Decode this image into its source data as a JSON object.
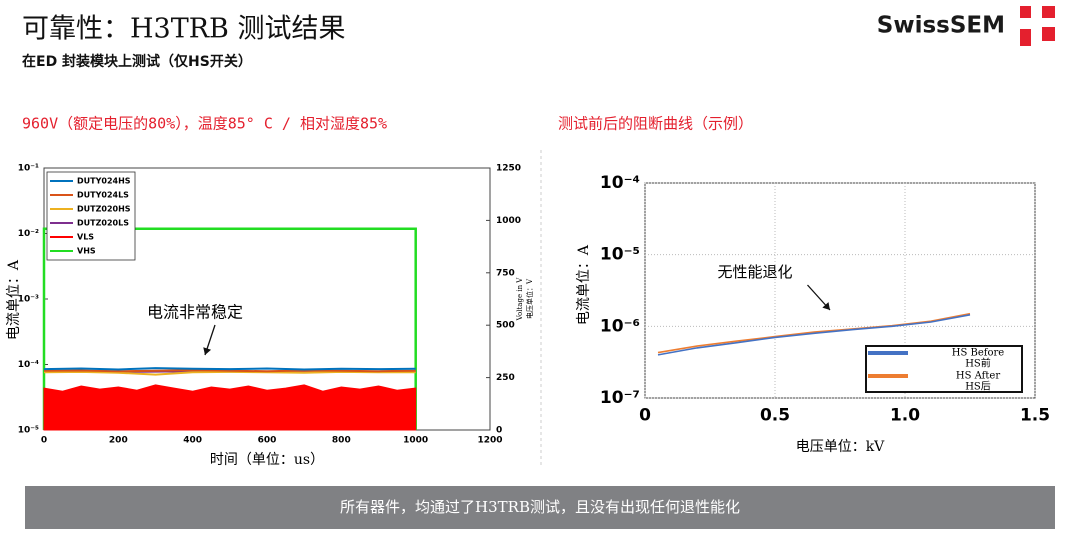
{
  "header": {
    "title": "可靠性：H3TRB 测试结果",
    "subtitle": "在ED 封装模块上测试（仅HS开关）",
    "logo": "SwissSEM"
  },
  "chart_data": [
    {
      "type": "line",
      "title": "960V（额定电压的80%），温度85° C / 相对湿度85%",
      "xlabel": "时间（单位：us）",
      "ylabel": "电流单位：A",
      "y2label": [
        "Voltage in V",
        "电压单位：V"
      ],
      "ylog": true,
      "xlim": [
        0,
        1200
      ],
      "xticks": [
        0,
        200,
        400,
        600,
        800,
        1000,
        1200
      ],
      "ylim": [
        1e-05,
        0.1
      ],
      "yticks": [
        {
          "value": 1e-05,
          "label": "10⁻⁵"
        },
        {
          "value": 0.0001,
          "label": "10⁻⁴"
        },
        {
          "value": 0.001,
          "label": "10⁻³"
        },
        {
          "value": 0.01,
          "label": "10⁻²"
        },
        {
          "value": 0.1,
          "label": "10⁻¹"
        }
      ],
      "y2lim": [
        0,
        1250
      ],
      "y2ticks": [
        0,
        250,
        500,
        750,
        1000,
        1250
      ],
      "legend": "upper left",
      "grid": false,
      "annotation": "电流非常稳定",
      "series": [
        {
          "name": "DUTY024HS",
          "color": "#0072bd",
          "x": [
            0,
            100,
            200,
            300,
            400,
            500,
            600,
            700,
            800,
            900,
            1000
          ],
          "values": [
            8.5e-05,
            8.7e-05,
            8.4e-05,
            8.8e-05,
            8.6e-05,
            8.5e-05,
            8.7e-05,
            8.4e-05,
            8.6e-05,
            8.5e-05,
            8.6e-05
          ]
        },
        {
          "name": "DUTY024LS",
          "color": "#d95319",
          "x": [
            0,
            100,
            200,
            300,
            400,
            500,
            600,
            700,
            800,
            900,
            1000
          ],
          "values": [
            8e-05,
            8.1e-05,
            7.9e-05,
            8e-05,
            8.2e-05,
            8e-05,
            7.9e-05,
            8.1e-05,
            8e-05,
            7.9e-05,
            8e-05
          ]
        },
        {
          "name": "DUTZ020HS",
          "color": "#edb120",
          "x": [
            0,
            100,
            200,
            300,
            400,
            500,
            600,
            700,
            800,
            900,
            1000
          ],
          "values": [
            7.6e-05,
            7.7e-05,
            7.5e-05,
            7e-05,
            7.6e-05,
            7.7e-05,
            7.6e-05,
            7.5e-05,
            7.7e-05,
            7.6e-05,
            7.6e-05
          ]
        },
        {
          "name": "DUTZ020LS",
          "color": "#7e2f8e",
          "x": [
            0,
            100,
            200,
            300,
            400,
            500,
            600,
            700,
            800,
            900,
            1000
          ],
          "values": [
            7.8e-05,
            7.8e-05,
            7.7e-05,
            7.8e-05,
            7.9e-05,
            7.8e-05,
            7.8e-05,
            7.7e-05,
            7.8e-05,
            7.8e-05,
            7.8e-05
          ]
        },
        {
          "name": "VLS",
          "color": "#ff0000",
          "axis": "y2",
          "area": true,
          "x": [
            0,
            50,
            100,
            150,
            200,
            250,
            300,
            350,
            400,
            450,
            500,
            550,
            600,
            650,
            700,
            750,
            800,
            850,
            900,
            950,
            1000
          ],
          "values": [
            200,
            185,
            210,
            195,
            205,
            190,
            215,
            200,
            185,
            205,
            195,
            210,
            190,
            200,
            215,
            185,
            205,
            195,
            210,
            190,
            200
          ]
        },
        {
          "name": "VHS",
          "color": "#22dd22",
          "axis": "y2",
          "x": [
            0,
            0,
            1000,
            1000
          ],
          "values": [
            0,
            960,
            960,
            0
          ]
        }
      ]
    },
    {
      "type": "line",
      "title": "测试前后的阻断曲线（示例）",
      "xlabel": "电压单位：kV",
      "ylabel": "电流单位：A",
      "ylog": true,
      "xlim": [
        0,
        1.5
      ],
      "xticks": [
        0,
        0.5,
        {
          "value": 1,
          "label": "1.0"
        },
        1.5
      ],
      "ylim": [
        1e-07,
        0.0001
      ],
      "yticks": [
        {
          "value": 1e-07,
          "label": "10⁻⁷"
        },
        {
          "value": 1e-06,
          "label": "10⁻⁶"
        },
        {
          "value": 1e-05,
          "label": "10⁻⁵"
        },
        {
          "value": 0.0001,
          "label": "10⁻⁴"
        }
      ],
      "legend": "lower right",
      "grid": true,
      "annotation": "无性能退化",
      "series": [
        {
          "name": "HS Before",
          "legend_sub": "HS前",
          "color": "#4472c4",
          "x": [
            0.05,
            0.2,
            0.35,
            0.5,
            0.65,
            0.8,
            0.95,
            1.1,
            1.25
          ],
          "values": [
            4e-07,
            5e-07,
            5.9e-07,
            7e-07,
            8e-07,
            9e-07,
            1e-06,
            1.15e-06,
            1.45e-06
          ]
        },
        {
          "name": "HS After",
          "legend_sub": "HS后",
          "color": "#ed7d31",
          "x": [
            0.05,
            0.2,
            0.35,
            0.5,
            0.65,
            0.8,
            0.95,
            1.1,
            1.25
          ],
          "values": [
            4.3e-07,
            5.3e-07,
            6.2e-07,
            7.2e-07,
            8.3e-07,
            9.2e-07,
            1.02e-06,
            1.18e-06,
            1.5e-06
          ]
        }
      ]
    }
  ],
  "footer": "所有器件，均通过了H3TRB测试，且没有出现任何退性能化"
}
